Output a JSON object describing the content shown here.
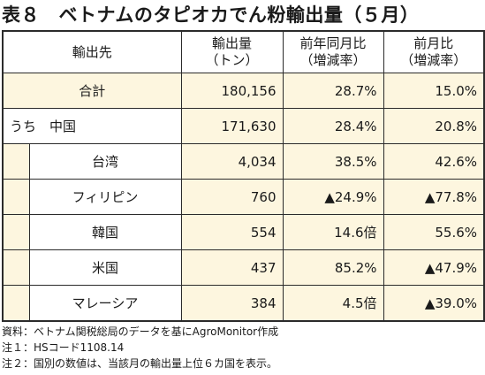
{
  "title": "表８　ベトナムのタピオカでん粉輸出量（５月）",
  "table": {
    "headers": {
      "destination": "輸出先",
      "volume_line1": "輸出量",
      "volume_line2": "（トン）",
      "yoy_line1": "前年同月比",
      "yoy_line2": "（増減率）",
      "mom_line1": "前月比",
      "mom_line2": "（増減率）"
    },
    "total": {
      "name": "合計",
      "volume": "180,156",
      "yoy": "28.7%",
      "mom": "15.0%"
    },
    "rows": [
      {
        "name": "うち　中国",
        "volume": "171,630",
        "yoy": "28.4%",
        "mom": "20.8%"
      },
      {
        "name": "台湾",
        "volume": "4,034",
        "yoy": "38.5%",
        "mom": "42.6%"
      },
      {
        "name": "フィリピン",
        "volume": "760",
        "yoy": "▲24.9%",
        "mom": "▲77.8%"
      },
      {
        "name": "韓国",
        "volume": "554",
        "yoy": "14.6倍",
        "mom": "55.6%"
      },
      {
        "name": "米国",
        "volume": "437",
        "yoy": "85.2%",
        "mom": "▲47.9%"
      },
      {
        "name": "マレーシア",
        "volume": "384",
        "yoy": "4.5倍",
        "mom": "▲39.0%"
      }
    ]
  },
  "notes": {
    "source": "資料：ベトナム関税総局のデータを基にAgroMonitor作成",
    "note1": "注１：HSコード1108.14",
    "note2": "注２：国別の数値は、当該月の輸出量上位６カ国を表示。"
  }
}
